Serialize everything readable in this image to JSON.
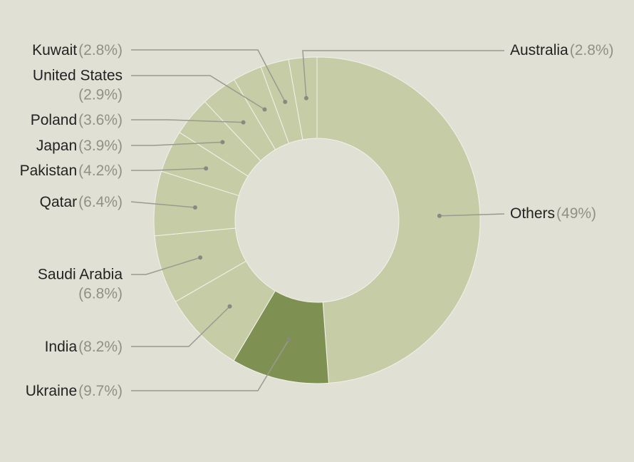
{
  "chart_data": {
    "type": "donut",
    "categories": [
      "Others",
      "Ukraine",
      "India",
      "Saudi Arabia",
      "Qatar",
      "Pakistan",
      "Japan",
      "Poland",
      "United States",
      "Kuwait",
      "Australia"
    ],
    "values": [
      49,
      9.7,
      8.2,
      6.8,
      6.4,
      4.2,
      3.9,
      3.6,
      2.9,
      2.8,
      2.8
    ],
    "value_labels": [
      "(49%)",
      "(9.7%)",
      "(8.2%)",
      "(6.8%)",
      "(6.4%)",
      "(4.2%)",
      "(3.9%)",
      "(3.6%)",
      "(2.9%)",
      "(2.8%)",
      "(2.8%)"
    ],
    "colors": [
      "#c6cca6",
      "#7f9152",
      "#c6cca6",
      "#c6cca6",
      "#c6cca6",
      "#c6cca6",
      "#c6cca6",
      "#c6cca6",
      "#c6cca6",
      "#c6cca6",
      "#c6cca6"
    ]
  }
}
